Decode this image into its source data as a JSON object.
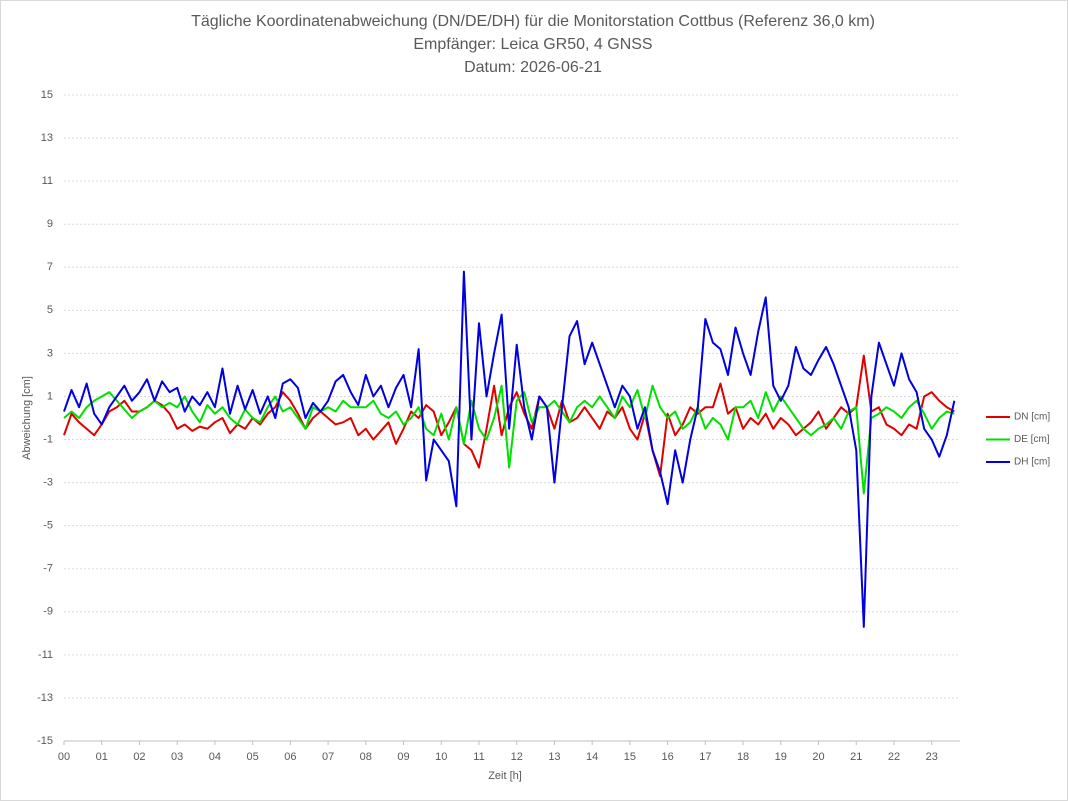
{
  "chart_data": {
    "type": "line",
    "title": "Tägliche Koordinatenabweichung (DN/DE/DH) für die Monitorstation Cottbus (Referenz 36,0 km)",
    "subtitle": [
      "Empfänger: Leica GR50, 4 GNSS",
      "Datum: 2026-06-21"
    ],
    "x_label": "Zeit [h]",
    "y_label": "Abweichung [cm]",
    "xlim": [
      0,
      23.75
    ],
    "ylim": [
      -15,
      15
    ],
    "xticks": [
      {
        "value": 0,
        "label": "00"
      },
      {
        "value": 1,
        "label": "01"
      },
      {
        "value": 2,
        "label": "02"
      },
      {
        "value": 3,
        "label": "03"
      },
      {
        "value": 4,
        "label": "04"
      },
      {
        "value": 5,
        "label": "05"
      },
      {
        "value": 6,
        "label": "06"
      },
      {
        "value": 7,
        "label": "07"
      },
      {
        "value": 8,
        "label": "08"
      },
      {
        "value": 9,
        "label": "09"
      },
      {
        "value": 10,
        "label": "10"
      },
      {
        "value": 11,
        "label": "11"
      },
      {
        "value": 12,
        "label": "12"
      },
      {
        "value": 13,
        "label": "13"
      },
      {
        "value": 14,
        "label": "14"
      },
      {
        "value": 15,
        "label": "15"
      },
      {
        "value": 16,
        "label": "16"
      },
      {
        "value": 17,
        "label": "17"
      },
      {
        "value": 18,
        "label": "18"
      },
      {
        "value": 19,
        "label": "19"
      },
      {
        "value": 20,
        "label": "20"
      },
      {
        "value": 21,
        "label": "21"
      },
      {
        "value": 22,
        "label": "22"
      },
      {
        "value": 23,
        "label": "23"
      }
    ],
    "yticks": [
      -15,
      -13,
      -11,
      -9,
      -7,
      -5,
      -3,
      -1,
      1,
      3,
      5,
      7,
      9,
      11,
      13,
      15
    ],
    "grid": true,
    "legend": "right",
    "x": [
      0,
      0.2,
      0.4,
      0.6,
      0.8,
      1,
      1.2,
      1.4,
      1.6,
      1.8,
      2,
      2.2,
      2.4,
      2.6,
      2.8,
      3,
      3.2,
      3.4,
      3.6,
      3.8,
      4,
      4.2,
      4.4,
      4.6,
      4.8,
      5,
      5.2,
      5.4,
      5.6,
      5.8,
      6,
      6.2,
      6.4,
      6.6,
      6.8,
      7,
      7.2,
      7.4,
      7.6,
      7.8,
      8,
      8.2,
      8.4,
      8.6,
      8.8,
      9,
      9.2,
      9.4,
      9.6,
      9.8,
      10,
      10.2,
      10.4,
      10.6,
      10.8,
      11,
      11.2,
      11.4,
      11.6,
      11.8,
      12,
      12.2,
      12.4,
      12.6,
      12.8,
      13,
      13.2,
      13.4,
      13.6,
      13.8,
      14,
      14.2,
      14.4,
      14.6,
      14.8,
      15,
      15.2,
      15.4,
      15.6,
      15.8,
      16,
      16.2,
      16.4,
      16.6,
      16.8,
      17,
      17.2,
      17.4,
      17.6,
      17.8,
      18,
      18.2,
      18.4,
      18.6,
      18.8,
      19,
      19.2,
      19.4,
      19.6,
      19.8,
      20,
      20.2,
      20.4,
      20.6,
      20.8,
      21,
      21.2,
      21.4,
      21.6,
      21.8,
      22,
      22.2,
      22.4,
      22.6,
      22.8,
      23,
      23.2,
      23.4,
      23.6
    ],
    "series": [
      {
        "name": "DN [cm]",
        "color": "#e00000",
        "values": [
          -0.8,
          0.2,
          -0.2,
          -0.5,
          -0.8,
          -0.3,
          0.3,
          0.5,
          0.8,
          0.3,
          0.3,
          0.5,
          0.8,
          0.6,
          0.2,
          -0.5,
          -0.3,
          -0.6,
          -0.4,
          -0.5,
          -0.2,
          0.0,
          -0.7,
          -0.3,
          -0.5,
          0.0,
          -0.3,
          0.2,
          0.5,
          1.2,
          0.8,
          0.2,
          -0.5,
          0.0,
          0.3,
          0.0,
          -0.3,
          -0.2,
          0.0,
          -0.8,
          -0.5,
          -1.0,
          -0.6,
          -0.2,
          -1.2,
          -0.5,
          0.3,
          0.0,
          0.6,
          0.3,
          -0.8,
          -0.2,
          0.5,
          -1.2,
          -1.5,
          -2.3,
          -0.5,
          1.5,
          -0.8,
          0.5,
          1.2,
          0.2,
          -0.5,
          1.0,
          0.5,
          -0.5,
          0.8,
          -0.2,
          0.0,
          0.5,
          0.0,
          -0.5,
          0.3,
          0.0,
          0.5,
          -0.5,
          -1.0,
          0.2,
          -1.5,
          -2.7,
          0.2,
          -0.8,
          -0.3,
          0.5,
          0.2,
          0.5,
          0.5,
          1.6,
          0.2,
          0.5,
          -0.5,
          0.0,
          -0.3,
          0.2,
          -0.5,
          0.0,
          -0.3,
          -0.8,
          -0.5,
          -0.2,
          0.3,
          -0.5,
          0.0,
          0.5,
          0.2,
          0.5,
          2.9,
          0.3,
          0.5,
          -0.3,
          -0.5,
          -0.8,
          -0.3,
          -0.5,
          1.0,
          1.2,
          0.8,
          0.5,
          0.3
        ]
      },
      {
        "name": "DE [cm]",
        "color": "#00e000",
        "values": [
          0.0,
          0.3,
          0.0,
          0.5,
          0.8,
          1.0,
          1.2,
          0.8,
          0.4,
          0.0,
          0.3,
          0.5,
          0.8,
          0.5,
          0.7,
          0.5,
          1.0,
          0.3,
          -0.2,
          0.6,
          0.2,
          0.5,
          0.0,
          -0.3,
          0.4,
          0.0,
          -0.2,
          0.5,
          1.0,
          0.3,
          0.5,
          0.0,
          -0.5,
          0.5,
          0.3,
          0.5,
          0.3,
          0.8,
          0.5,
          0.5,
          0.5,
          0.8,
          0.2,
          0.0,
          0.3,
          -0.3,
          0.0,
          0.5,
          -0.5,
          -0.8,
          0.2,
          -1.0,
          0.5,
          -1.2,
          0.8,
          -0.5,
          -1.0,
          0.0,
          1.5,
          -2.3,
          0.8,
          1.2,
          -0.2,
          0.5,
          0.5,
          0.8,
          0.3,
          -0.2,
          0.5,
          0.8,
          0.5,
          1.0,
          0.5,
          0.0,
          1.0,
          0.5,
          1.3,
          0.0,
          1.5,
          0.5,
          0.0,
          0.3,
          -0.5,
          -0.2,
          0.5,
          -0.5,
          0.0,
          -0.3,
          -1.0,
          0.5,
          0.5,
          0.8,
          0.0,
          1.2,
          0.3,
          1.0,
          0.5,
          0.0,
          -0.5,
          -0.8,
          -0.5,
          -0.3,
          0.0,
          -0.5,
          0.3,
          0.5,
          -3.5,
          0.0,
          0.2,
          0.5,
          0.3,
          0.0,
          0.5,
          0.8,
          0.2,
          -0.5,
          0.0,
          0.3,
          0.2
        ]
      },
      {
        "name": "DH [cm]",
        "color": "#0000e0",
        "values": [
          0.3,
          1.3,
          0.5,
          1.6,
          0.2,
          -0.3,
          0.5,
          1.0,
          1.5,
          0.8,
          1.2,
          1.8,
          0.8,
          1.7,
          1.2,
          1.4,
          0.3,
          1.0,
          0.6,
          1.2,
          0.5,
          2.3,
          0.2,
          1.5,
          0.4,
          1.3,
          0.2,
          1.0,
          0.0,
          1.6,
          1.8,
          1.4,
          0.0,
          0.7,
          0.3,
          0.8,
          1.7,
          2.0,
          1.2,
          0.6,
          2.0,
          1.0,
          1.5,
          0.5,
          1.4,
          2.0,
          0.5,
          3.2,
          -2.9,
          -1.0,
          -1.5,
          -2.0,
          -4.1,
          6.8,
          -1.0,
          4.4,
          1.0,
          3.0,
          4.8,
          -0.5,
          3.4,
          0.5,
          -1.0,
          1.0,
          0.5,
          -3.0,
          0.5,
          3.8,
          4.5,
          2.5,
          3.5,
          2.5,
          1.5,
          0.5,
          1.5,
          1.0,
          -0.5,
          0.5,
          -1.5,
          -2.5,
          -4.0,
          -1.5,
          -3.0,
          -1.0,
          0.5,
          4.6,
          3.5,
          3.2,
          2.0,
          4.2,
          3.0,
          2.0,
          4.0,
          5.6,
          1.5,
          0.8,
          1.5,
          3.3,
          2.3,
          2.0,
          2.7,
          3.3,
          2.5,
          1.5,
          0.5,
          -1.5,
          -9.7,
          1.0,
          3.5,
          2.5,
          1.5,
          3.0,
          1.8,
          1.2,
          -0.5,
          -1.0,
          -1.8,
          -0.8,
          0.8
        ]
      }
    ]
  }
}
